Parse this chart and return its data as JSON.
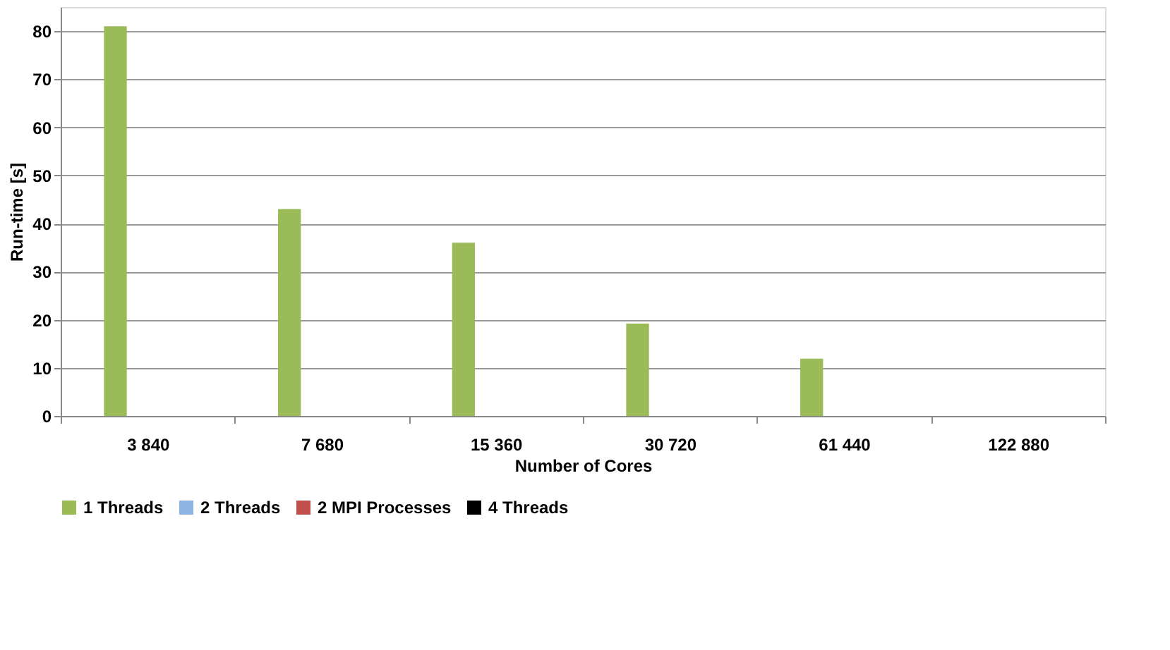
{
  "chart_data": {
    "type": "bar",
    "xlabel": "Number of Cores",
    "ylabel": "Run-time [s]",
    "categories": [
      "3 840",
      "7 680",
      "15 360",
      "30 720",
      "61 440",
      "122 880"
    ],
    "series": [
      {
        "name": "1 Threads",
        "color": "#9bbb59",
        "values": [
          81,
          43,
          36,
          19.2,
          11.9,
          null
        ]
      },
      {
        "name": "2 Threads",
        "color": "#8db3e2",
        "values": [
          null,
          null,
          null,
          null,
          null,
          null
        ]
      },
      {
        "name": "2 MPI Processes",
        "color": "#c0504d",
        "values": [
          null,
          null,
          null,
          null,
          null,
          null
        ]
      },
      {
        "name": "4 Threads",
        "color": "#000000",
        "values": [
          null,
          null,
          null,
          null,
          null,
          null
        ]
      }
    ],
    "ylim": [
      0,
      85
    ],
    "yticks": [
      0,
      10,
      20,
      30,
      40,
      50,
      60,
      70,
      80
    ],
    "grid": "y",
    "legend": "bottom"
  }
}
